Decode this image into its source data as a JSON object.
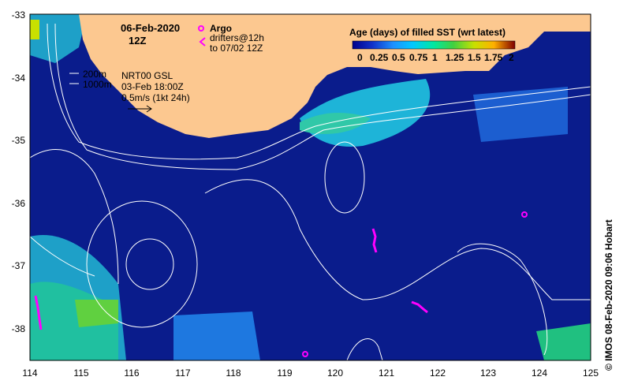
{
  "map": {
    "date_title": "06-Feb-2020",
    "time_title": "12Z",
    "legend": {
      "argo_label": "Argo",
      "drifters_label_1": "drifters@12h",
      "drifters_label_2": "to 07/02 12Z"
    },
    "isobaths": {
      "shallow": "200m",
      "deep": "1000m"
    },
    "info": {
      "line1": "NRT00 GSL",
      "line2": "03-Feb 18:00Z",
      "line3": "0.5m/s (1kt 24h)"
    },
    "colorbar": {
      "title": "Age (days) of filled SST (wrt latest)",
      "ticks": [
        "0",
        "0.25",
        "0.5",
        "0.75",
        "1",
        "1.25",
        "1.5",
        "1.75",
        "2"
      ],
      "colors": [
        "#00008b",
        "#1030c8",
        "#1e90ff",
        "#00c8ff",
        "#00e8a0",
        "#40d040",
        "#c8e000",
        "#ffb000",
        "#e04000",
        "#800000"
      ]
    },
    "axes": {
      "lat_ticks": [
        "-33",
        "-34",
        "-35",
        "-36",
        "-37",
        "-38"
      ],
      "lon_ticks": [
        "114",
        "115",
        "116",
        "117",
        "118",
        "119",
        "120",
        "121",
        "122",
        "123",
        "124",
        "125"
      ]
    },
    "credit": "© IMOS 08-Feb-2020 09:06 Hobart",
    "colors": {
      "land": "#fcc890",
      "ocean_deep": "#0a1c8c",
      "contour": "#ffffff",
      "argo": "#ff00ff"
    }
  }
}
